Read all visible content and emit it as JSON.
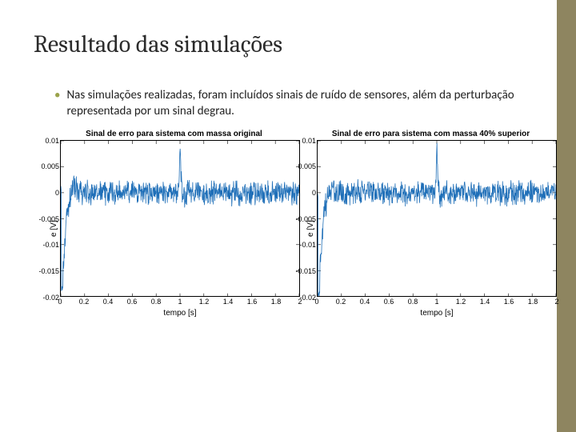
{
  "slide": {
    "title": "Resultado das simulações",
    "bullet": "Nas simulações realizadas, foram incluídos sinais de ruído de sensores, além da perturbação representada por um sinal degrau."
  },
  "sidebar_color": "#8e8560",
  "bullet_color": "#9aa24a",
  "charts": {
    "left": {
      "title": "Sinal de erro para sistema com massa original",
      "xlabel": "tempo [s]",
      "ylabel": "e [V]",
      "line_color": "#1f6fb8",
      "xlim": [
        0,
        2.0
      ],
      "ylim": [
        -0.02,
        0.01
      ],
      "xticks": [
        0,
        0.2,
        0.4,
        0.6,
        0.8,
        1,
        1.2,
        1.4,
        1.6,
        1.8,
        2
      ],
      "yticks": [
        -0.02,
        -0.015,
        -0.01,
        -0.005,
        0,
        0.005,
        0.01
      ],
      "ytick_labels": [
        "-0.02",
        "-0.015",
        "-0.01",
        "-0.005",
        "0",
        "0.005",
        "0.01"
      ],
      "xtick_labels": [
        "0",
        "0.2",
        "0.4",
        "0.6",
        "0.8",
        "1",
        "1.2",
        "1.4",
        "1.6",
        "1.8",
        "2"
      ]
    },
    "right": {
      "title": "Sinal de erro para sistema com massa 40% superior",
      "xlabel": "tempo [s]",
      "ylabel": "e [V]",
      "line_color": "#1f6fb8",
      "xlim": [
        0,
        2.0
      ],
      "ylim": [
        -0.02,
        0.01
      ],
      "xticks": [
        0,
        0.2,
        0.4,
        0.6,
        0.8,
        1,
        1.2,
        1.4,
        1.6,
        1.8,
        2
      ],
      "yticks": [
        -0.02,
        -0.015,
        -0.01,
        -0.005,
        0,
        0.005,
        0.01
      ],
      "ytick_labels": [
        "-0.02",
        "-0.015",
        "-0.01",
        "-0.005",
        "0",
        "0.005",
        "0.01"
      ],
      "xtick_labels": [
        "0",
        "0.2",
        "0.4",
        "0.6",
        "0.8",
        "1",
        "1.2",
        "1.4",
        "1.6",
        "1.8",
        "2"
      ]
    }
  }
}
